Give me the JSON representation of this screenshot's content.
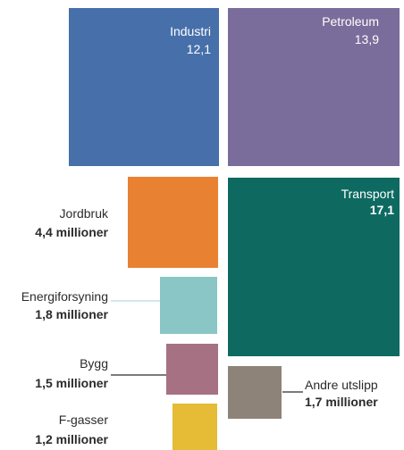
{
  "chart_data": {
    "type": "treemap",
    "items": [
      {
        "name": "Industri",
        "value_label": "12,1",
        "value": 12.1,
        "color": "#4770AA"
      },
      {
        "name": "Petroleum",
        "value_label": "13,9",
        "value": 13.9,
        "color": "#7A6C9B"
      },
      {
        "name": "Transport",
        "value_label": "17,1",
        "value": 17.1,
        "color": "#0E6A61"
      },
      {
        "name": "Jordbruk",
        "value_label": "4,4 millioner",
        "value": 4.4,
        "color": "#E98132"
      },
      {
        "name": "Energiforsyning",
        "value_label": "1,8 millioner",
        "value": 1.8,
        "color": "#8AC6C5"
      },
      {
        "name": "Bygg",
        "value_label": "1,5 millioner",
        "value": 1.5,
        "color": "#A77184"
      },
      {
        "name": "Andre utslipp",
        "value_label": "1,7 millioner",
        "value": 1.7,
        "color": "#8E8379"
      },
      {
        "name": "F-gasser",
        "value_label": "1,2 millioner",
        "value": 1.2,
        "color": "#E6BB35"
      }
    ]
  }
}
